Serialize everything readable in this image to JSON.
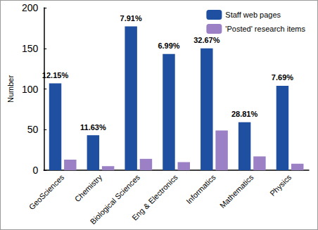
{
  "chart_data": {
    "type": "bar",
    "y_label": "Number",
    "categories": [
      "GeoSciences",
      "Chemistry",
      "Biological Sciences",
      "Eng & Electronics",
      "Informatics",
      "Mathematics",
      "Physics"
    ],
    "series": [
      {
        "name": "Staff web pages",
        "color": "#1f4fa0",
        "values": [
          107,
          43,
          177,
          143,
          150,
          59,
          104
        ]
      },
      {
        "name": "'Posted' research items",
        "color": "#9b80c6",
        "values": [
          13,
          5,
          14,
          10,
          49,
          17,
          8
        ]
      }
    ],
    "annotations": [
      "12.15%",
      "11.63%",
      "7.91%",
      "6.99%",
      "32.67%",
      "28.81%",
      "7.69%"
    ],
    "ylim": [
      0,
      200
    ],
    "yticks": [
      0,
      50,
      100,
      150,
      200
    ],
    "grid": false,
    "legend": "upper right"
  }
}
